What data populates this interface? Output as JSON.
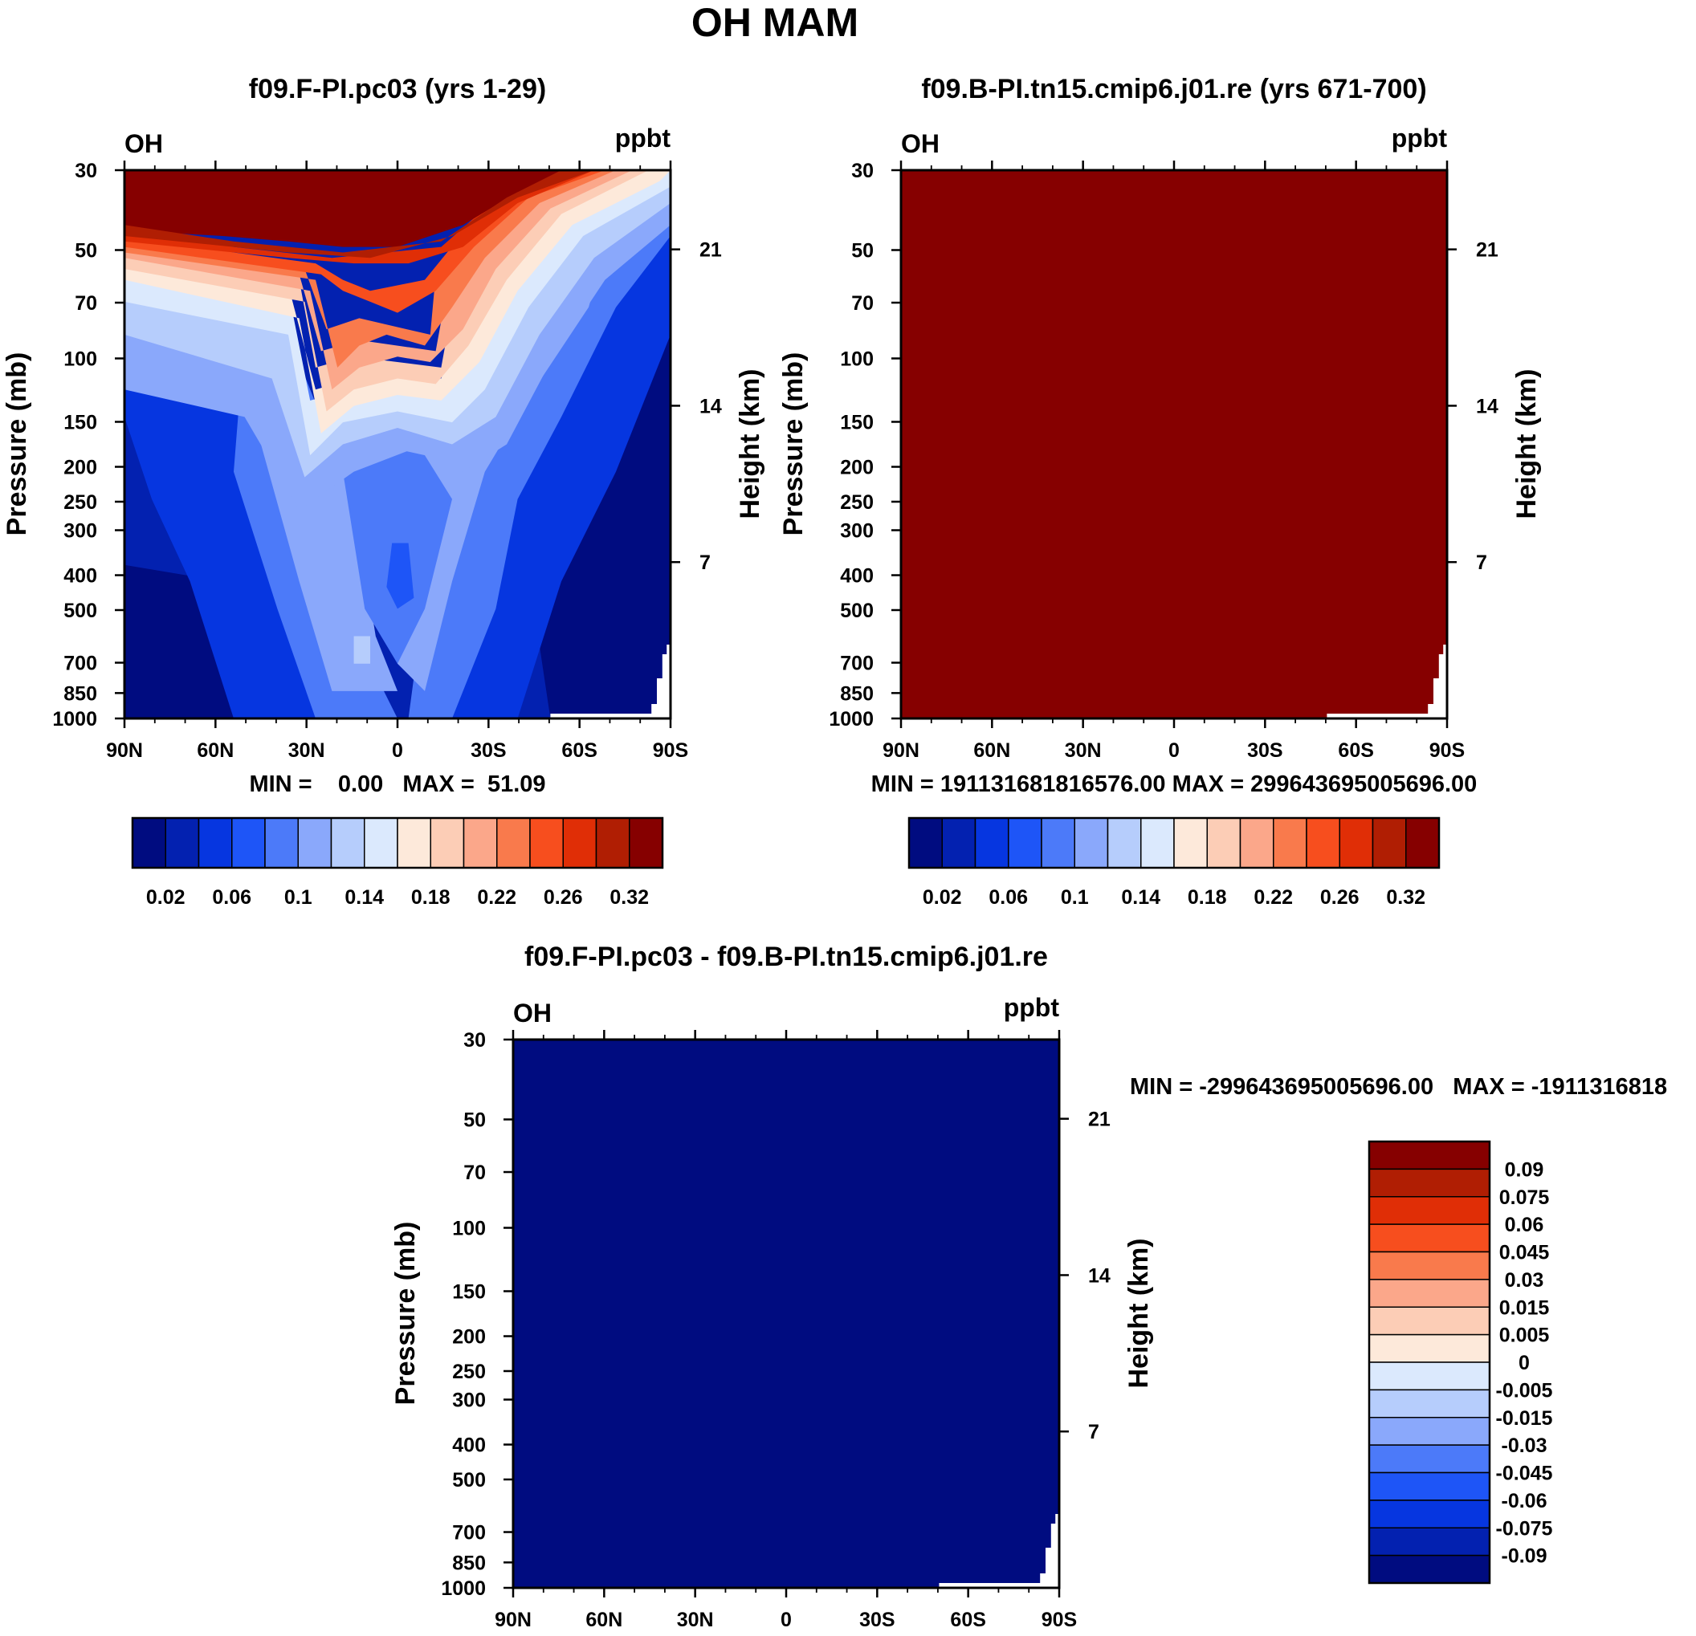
{
  "figure": {
    "title": "OH MAM"
  },
  "colors": {
    "frame": "#000000",
    "mask": "#ffffff",
    "abs_palette": [
      "#000c80",
      "#0321b0",
      "#0636e0",
      "#1e55f7",
      "#4c7af9",
      "#8aa8fb",
      "#b6cdfc",
      "#dbe9fd",
      "#fde9da",
      "#fccdb6",
      "#fba78a",
      "#f97a4c",
      "#f74e1e",
      "#e02e06",
      "#b01e03",
      "#860000"
    ],
    "diff_palette": [
      "#860000",
      "#b01e03",
      "#e02e06",
      "#f74e1e",
      "#f97a4c",
      "#fba78a",
      "#fccdb6",
      "#fde9da",
      "#dbe9fd",
      "#b6cdfc",
      "#8aa8fb",
      "#4c7af9",
      "#1e55f7",
      "#0636e0",
      "#0321b0",
      "#000c80"
    ]
  },
  "chart_data": [
    {
      "type": "heatmap",
      "title": "f09.F-PI.pc03 (yrs 1-29)",
      "left_string": "OH",
      "right_string": "ppbt",
      "ylabel": "Pressure (mb)",
      "ylabel_right": "Height (km)",
      "x_ticks": [
        "90N",
        "60N",
        "30N",
        "0",
        "30S",
        "60S",
        "90S"
      ],
      "y_ticks": [
        "30",
        "50",
        "70",
        "100",
        "150",
        "200",
        "250",
        "300",
        "400",
        "500",
        "700",
        "850",
        "1000"
      ],
      "y_right_ticks": [
        "21",
        "14",
        "7"
      ],
      "ylim": [
        1000,
        30
      ],
      "xlim": [
        "90N",
        "90S"
      ],
      "stats": "MIN =    0.00   MAX =  51.09",
      "colorbar_labels": [
        "0.02",
        "0.06",
        "0.1",
        "0.14",
        "0.18",
        "0.22",
        "0.26",
        "0.32"
      ],
      "contour_levels": [
        0.01,
        0.02,
        0.04,
        0.06,
        0.08,
        0.1,
        0.12,
        0.14,
        0.16,
        0.18,
        0.2,
        0.22,
        0.24,
        0.26,
        0.32
      ],
      "fill": "field"
    },
    {
      "type": "heatmap",
      "title": "f09.B-PI.tn15.cmip6.j01.re (yrs 671-700)",
      "left_string": "OH",
      "right_string": "ppbt",
      "ylabel": "Pressure (mb)",
      "ylabel_right": "Height (km)",
      "x_ticks": [
        "90N",
        "60N",
        "30N",
        "0",
        "30S",
        "60S",
        "90S"
      ],
      "y_ticks": [
        "30",
        "50",
        "70",
        "100",
        "150",
        "200",
        "250",
        "300",
        "400",
        "500",
        "700",
        "850",
        "1000"
      ],
      "y_right_ticks": [
        "21",
        "14",
        "7"
      ],
      "ylim": [
        1000,
        30
      ],
      "xlim": [
        "90N",
        "90S"
      ],
      "stats": "MIN = 19113168181 6576.00   MAX = 29964369500 5696.00",
      "colorbar_labels": [
        "0.02",
        "0.06",
        "0.1",
        "0.14",
        "0.18",
        "0.22",
        "0.26",
        "0.32"
      ],
      "contour_levels": [
        0.01,
        0.02,
        0.04,
        0.06,
        0.08,
        0.1,
        0.12,
        0.14,
        0.16,
        0.18,
        0.2,
        0.22,
        0.24,
        0.26,
        0.32
      ],
      "fill": "uniform-max"
    },
    {
      "type": "heatmap",
      "title": "f09.F-PI.pc03 - f09.B-PI.tn15.cmip6.j01.re",
      "left_string": "OH",
      "right_string": "ppbt",
      "ylabel": "Pressure (mb)",
      "ylabel_right": "Height (km)",
      "x_ticks": [
        "90N",
        "60N",
        "30N",
        "0",
        "30S",
        "60S",
        "90S"
      ],
      "y_ticks": [
        "30",
        "50",
        "70",
        "100",
        "150",
        "200",
        "250",
        "300",
        "400",
        "500",
        "700",
        "850",
        "1000"
      ],
      "y_right_ticks": [
        "21",
        "14",
        "7"
      ],
      "ylim": [
        1000,
        30
      ],
      "xlim": [
        "90N",
        "90S"
      ],
      "stats": "MIN = -299643695005696.00   MAX = -1911316818",
      "colorbar_labels": [
        "0.09",
        "0.075",
        "0.06",
        "0.045",
        "0.03",
        "0.015",
        "0.005",
        "0",
        "-0.005",
        "-0.015",
        "-0.03",
        "-0.045",
        "-0.06",
        "-0.075",
        "-0.09"
      ],
      "fill": "uniform-min"
    }
  ]
}
